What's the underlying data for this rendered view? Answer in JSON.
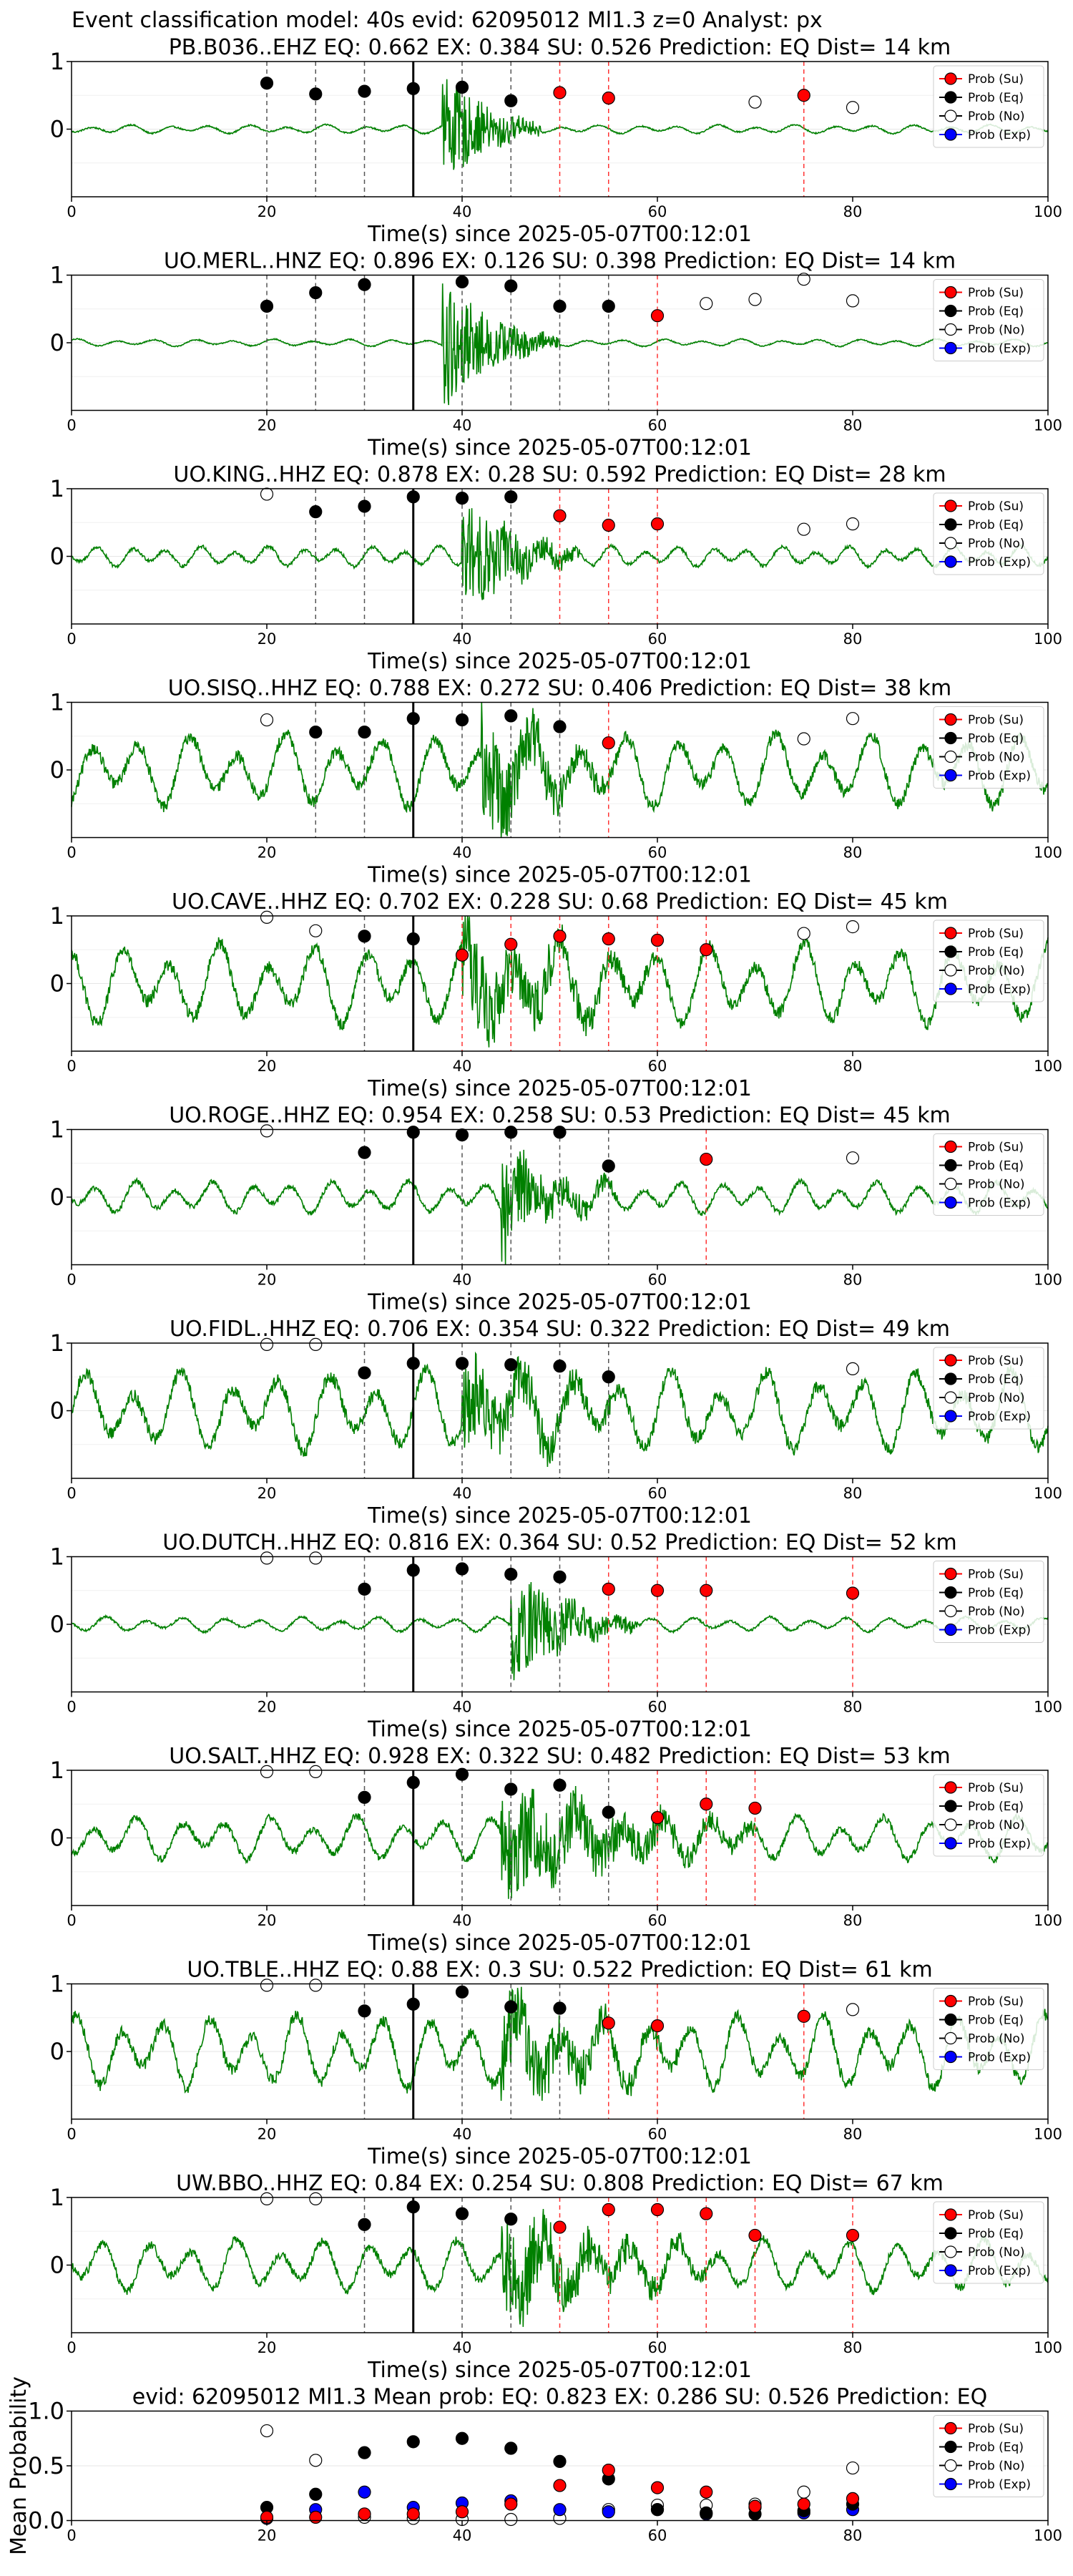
{
  "figure_title": "Event classification model: 40s evid: 62095012 Ml1.3 z=0 Analyst: px",
  "legend": [
    "Prob (Su)",
    "Prob (Eq)",
    "Prob (No)",
    "Prob (Exp)"
  ],
  "colors": {
    "su": "#ff0000",
    "eq": "#000000",
    "no": "#ffffff",
    "exp": "#0000ff",
    "trace": "#008000",
    "pick": "#000000",
    "eq_line": "#555555",
    "su_line": "#ff3333"
  },
  "chart_data": [
    {
      "type": "scatter",
      "title": "PB.B036..EHZ   EQ: 0.662   EX: 0.384   SU: 0.526   Prediction: EQ    Dist= 14 km",
      "xlabel": "Time(s) since 2025-05-07T00:12:01",
      "xlim": [
        0,
        100
      ],
      "ylim": [
        -1,
        1
      ],
      "xticks": [
        0,
        20,
        40,
        60,
        80,
        100
      ],
      "yticks": [
        0,
        1
      ],
      "pick": 35,
      "signal": [
        38,
        48
      ],
      "trace_amplitude": 0.06,
      "burst_amplitude": 0.9,
      "period": 4,
      "eq": {
        "x": [
          20,
          25,
          30,
          35,
          40,
          45
        ],
        "y": [
          0.68,
          0.52,
          0.56,
          0.6,
          0.62,
          0.42
        ]
      },
      "su": {
        "x": [
          50,
          55,
          75
        ],
        "y": [
          0.54,
          0.46,
          0.5
        ]
      },
      "no": {
        "x": [
          70,
          80
        ],
        "y": [
          0.4,
          0.32
        ]
      }
    },
    {
      "type": "scatter",
      "title": "UO.MERL..HNZ   EQ: 0.896   EX: 0.126   SU: 0.398   Prediction: EQ    Dist= 14 km",
      "xlabel": "Time(s) since 2025-05-07T00:12:01",
      "xlim": [
        0,
        100
      ],
      "ylim": [
        -1,
        1
      ],
      "xticks": [
        0,
        20,
        40,
        60,
        80,
        100
      ],
      "yticks": [
        0,
        1
      ],
      "pick": 35,
      "signal": [
        38,
        50
      ],
      "trace_amplitude": 0.05,
      "burst_amplitude": 1.0,
      "period": 4,
      "eq": {
        "x": [
          20,
          25,
          30,
          40,
          45,
          50,
          55
        ],
        "y": [
          0.54,
          0.74,
          0.86,
          0.9,
          0.84,
          0.54,
          0.54
        ]
      },
      "su": {
        "x": [
          60
        ],
        "y": [
          0.4
        ]
      },
      "no": {
        "x": [
          65,
          70,
          75,
          80
        ],
        "y": [
          0.58,
          0.64,
          0.94,
          0.62
        ]
      }
    },
    {
      "type": "scatter",
      "title": "UO.KING..HHZ   EQ: 0.878   EX: 0.28   SU: 0.592   Prediction: EQ    Dist= 28 km",
      "xlabel": "Time(s) since 2025-05-07T00:12:01",
      "xlim": [
        0,
        100
      ],
      "ylim": [
        -1,
        1
      ],
      "xticks": [
        0,
        20,
        40,
        60,
        80,
        100
      ],
      "yticks": [
        0,
        1
      ],
      "pick": 35,
      "signal": [
        40,
        52
      ],
      "trace_amplitude": 0.14,
      "burst_amplitude": 0.95,
      "period": 3.5,
      "eq": {
        "x": [
          25,
          30,
          35,
          40,
          45
        ],
        "y": [
          0.66,
          0.74,
          0.88,
          0.86,
          0.88
        ]
      },
      "su": {
        "x": [
          50,
          55,
          60
        ],
        "y": [
          0.6,
          0.46,
          0.48
        ]
      },
      "no": {
        "x": [
          20,
          75,
          80
        ],
        "y": [
          0.92,
          0.4,
          0.48
        ]
      }
    },
    {
      "type": "scatter",
      "title": "UO.SISQ..HHZ   EQ: 0.788   EX: 0.272   SU: 0.406   Prediction: EQ    Dist= 38 km",
      "xlabel": "Time(s) since 2025-05-07T00:12:01",
      "xlim": [
        0,
        100
      ],
      "ylim": [
        -1,
        1
      ],
      "xticks": [
        0,
        20,
        40,
        60,
        80,
        100
      ],
      "yticks": [
        0,
        1
      ],
      "pick": 35,
      "signal": [
        42,
        56
      ],
      "trace_amplitude": 0.5,
      "burst_amplitude": 0.9,
      "period": 5,
      "eq": {
        "x": [
          25,
          30,
          35,
          40,
          45,
          50
        ],
        "y": [
          0.56,
          0.56,
          0.76,
          0.74,
          0.8,
          0.64
        ]
      },
      "su": {
        "x": [
          55
        ],
        "y": [
          0.4
        ]
      },
      "no": {
        "x": [
          20,
          75,
          80
        ],
        "y": [
          0.74,
          0.46,
          0.76
        ]
      }
    },
    {
      "type": "scatter",
      "title": "UO.CAVE..HHZ   EQ: 0.702   EX: 0.228   SU: 0.68   Prediction: EQ    Dist= 45 km",
      "xlabel": "Time(s) since 2025-05-07T00:12:01",
      "xlim": [
        0,
        100
      ],
      "ylim": [
        -1,
        1
      ],
      "xticks": [
        0,
        20,
        40,
        60,
        80,
        100
      ],
      "yticks": [
        0,
        1
      ],
      "pick": 35,
      "signal": [
        40,
        60
      ],
      "trace_amplitude": 0.55,
      "burst_amplitude": 0.8,
      "period": 5,
      "eq": {
        "x": [
          30,
          35
        ],
        "y": [
          0.7,
          0.66
        ]
      },
      "su": {
        "x": [
          40,
          45,
          50,
          55,
          60,
          65
        ],
        "y": [
          0.42,
          0.58,
          0.7,
          0.66,
          0.64,
          0.5
        ]
      },
      "no": {
        "x": [
          20,
          25,
          75,
          80
        ],
        "y": [
          0.98,
          0.78,
          0.74,
          0.84
        ]
      }
    },
    {
      "type": "scatter",
      "title": "UO.ROGE..HHZ   EQ: 0.954   EX: 0.258   SU: 0.53   Prediction: EQ    Dist= 45 km",
      "xlabel": "Time(s) since 2025-05-07T00:12:01",
      "xlim": [
        0,
        100
      ],
      "ylim": [
        -1,
        1
      ],
      "xticks": [
        0,
        20,
        40,
        60,
        80,
        100
      ],
      "yticks": [
        0,
        1
      ],
      "pick": 35,
      "signal": [
        44,
        56
      ],
      "trace_amplitude": 0.22,
      "burst_amplitude": 0.85,
      "period": 4,
      "eq": {
        "x": [
          30,
          35,
          40,
          45,
          50,
          55
        ],
        "y": [
          0.66,
          0.96,
          0.92,
          0.96,
          0.96,
          0.46
        ]
      },
      "su": {
        "x": [
          65
        ],
        "y": [
          0.56
        ]
      },
      "no": {
        "x": [
          20,
          80
        ],
        "y": [
          0.98,
          0.58
        ]
      }
    },
    {
      "type": "scatter",
      "title": "UO.FIDL..HHZ   EQ: 0.706   EX: 0.354   SU: 0.322   Prediction: EQ    Dist= 49 km",
      "xlabel": "Time(s) since 2025-05-07T00:12:01",
      "xlim": [
        0,
        100
      ],
      "ylim": [
        -1,
        1
      ],
      "xticks": [
        0,
        20,
        40,
        60,
        80,
        100
      ],
      "yticks": [
        0,
        1
      ],
      "pick": 35,
      "signal": [
        40,
        58
      ],
      "trace_amplitude": 0.55,
      "burst_amplitude": 0.75,
      "period": 5,
      "eq": {
        "x": [
          30,
          35,
          40,
          45,
          50,
          55
        ],
        "y": [
          0.56,
          0.7,
          0.7,
          0.68,
          0.66,
          0.5
        ]
      },
      "su": {
        "x": [],
        "y": []
      },
      "no": {
        "x": [
          20,
          25,
          80
        ],
        "y": [
          0.98,
          0.98,
          0.62
        ]
      }
    },
    {
      "type": "scatter",
      "title": "UO.DUTCH..HHZ   EQ: 0.816   EX: 0.364   SU: 0.52   Prediction: EQ    Dist= 52 km",
      "xlabel": "Time(s) since 2025-05-07T00:12:01",
      "xlim": [
        0,
        100
      ],
      "ylim": [
        -1,
        1
      ],
      "xticks": [
        0,
        20,
        40,
        60,
        80,
        100
      ],
      "yticks": [
        0,
        1
      ],
      "pick": 35,
      "signal": [
        45,
        58
      ],
      "trace_amplitude": 0.1,
      "burst_amplitude": 0.9,
      "period": 4,
      "eq": {
        "x": [
          30,
          35,
          40,
          45,
          50
        ],
        "y": [
          0.52,
          0.8,
          0.82,
          0.74,
          0.7
        ]
      },
      "su": {
        "x": [
          55,
          60,
          65,
          80
        ],
        "y": [
          0.52,
          0.5,
          0.5,
          0.46
        ]
      },
      "no": {
        "x": [
          20,
          25
        ],
        "y": [
          0.98,
          0.98
        ]
      }
    },
    {
      "type": "scatter",
      "title": "UO.SALT..HHZ   EQ: 0.928   EX: 0.322   SU: 0.482   Prediction: EQ    Dist= 53 km",
      "xlabel": "Time(s) since 2025-05-07T00:12:01",
      "xlim": [
        0,
        100
      ],
      "ylim": [
        -1,
        1
      ],
      "xticks": [
        0,
        20,
        40,
        60,
        80,
        100
      ],
      "yticks": [
        0,
        1
      ],
      "pick": 35,
      "signal": [
        44,
        70
      ],
      "trace_amplitude": 0.3,
      "burst_amplitude": 0.85,
      "period": 4.5,
      "eq": {
        "x": [
          30,
          35,
          40,
          45,
          50,
          55
        ],
        "y": [
          0.6,
          0.82,
          0.94,
          0.72,
          0.78,
          0.38
        ]
      },
      "su": {
        "x": [
          60,
          65,
          70
        ],
        "y": [
          0.3,
          0.5,
          0.44
        ]
      },
      "no": {
        "x": [
          20,
          25
        ],
        "y": [
          0.98,
          0.98
        ]
      }
    },
    {
      "type": "scatter",
      "title": "UO.TBLE..HHZ   EQ: 0.88   EX: 0.3   SU: 0.522   Prediction: EQ    Dist= 61 km",
      "xlabel": "Time(s) since 2025-05-07T00:12:01",
      "xlim": [
        0,
        100
      ],
      "ylim": [
        -1,
        1
      ],
      "xticks": [
        0,
        20,
        40,
        60,
        80,
        100
      ],
      "yticks": [
        0,
        1
      ],
      "pick": 35,
      "signal": [
        44,
        62
      ],
      "trace_amplitude": 0.5,
      "burst_amplitude": 0.75,
      "period": 4.5,
      "eq": {
        "x": [
          30,
          35,
          40,
          45,
          50
        ],
        "y": [
          0.6,
          0.7,
          0.88,
          0.66,
          0.64
        ]
      },
      "su": {
        "x": [
          55,
          60,
          75
        ],
        "y": [
          0.42,
          0.38,
          0.52
        ]
      },
      "no": {
        "x": [
          20,
          25,
          80
        ],
        "y": [
          0.98,
          0.98,
          0.62
        ]
      }
    },
    {
      "type": "scatter",
      "title": "UW.BBO..HHZ   EQ: 0.84   EX: 0.254   SU: 0.808   Prediction: EQ    Dist= 67 km",
      "xlabel": "Time(s) since 2025-05-07T00:12:01",
      "xlim": [
        0,
        100
      ],
      "ylim": [
        -1,
        1
      ],
      "xticks": [
        0,
        20,
        40,
        60,
        80,
        100
      ],
      "yticks": [
        0,
        1
      ],
      "pick": 35,
      "signal": [
        44,
        66
      ],
      "trace_amplitude": 0.35,
      "burst_amplitude": 0.8,
      "period": 4.5,
      "eq": {
        "x": [
          30,
          35,
          40,
          45
        ],
        "y": [
          0.6,
          0.86,
          0.76,
          0.68
        ]
      },
      "su": {
        "x": [
          50,
          55,
          60,
          65,
          70,
          80
        ],
        "y": [
          0.56,
          0.82,
          0.82,
          0.76,
          0.44,
          0.44
        ]
      },
      "no": {
        "x": [
          20,
          25
        ],
        "y": [
          0.98,
          0.98
        ]
      }
    },
    {
      "type": "scatter",
      "title": "evid: 62095012  Ml1.3    Mean prob:   EQ: 0.823  EX: 0.286  SU: 0.526   Prediction: EQ",
      "ylabel": "Mean Probability",
      "xlim": [
        0,
        100
      ],
      "ylim": [
        0,
        1
      ],
      "xticks": [
        0,
        20,
        40,
        60,
        80,
        100
      ],
      "yticks": [
        0.0,
        0.5,
        1.0
      ],
      "ytick_labels": [
        "0.0",
        "0.5",
        "1.0"
      ],
      "no": {
        "x": [
          20,
          25,
          30,
          35,
          40,
          45,
          50,
          55,
          60,
          65,
          70,
          75,
          80
        ],
        "y": [
          0.82,
          0.55,
          0.03,
          0.02,
          0.01,
          0.01,
          0.02,
          0.1,
          0.14,
          0.14,
          0.15,
          0.26,
          0.48
        ]
      },
      "exp": {
        "x": [
          20,
          25,
          30,
          35,
          40,
          45,
          50,
          55,
          60,
          65,
          70,
          75,
          80
        ],
        "y": [
          0.02,
          0.1,
          0.26,
          0.12,
          0.16,
          0.18,
          0.1,
          0.08,
          0.1,
          0.06,
          0.12,
          0.07,
          0.1
        ]
      },
      "eq": {
        "x": [
          20,
          25,
          30,
          35,
          40,
          45,
          50,
          55,
          60,
          65,
          70,
          75,
          80
        ],
        "y": [
          0.12,
          0.24,
          0.62,
          0.72,
          0.75,
          0.66,
          0.54,
          0.38,
          0.1,
          0.07,
          0.06,
          0.09,
          0.15
        ]
      },
      "su": {
        "x": [
          20,
          25,
          30,
          35,
          40,
          45,
          50,
          55,
          60,
          65,
          70,
          75,
          80
        ],
        "y": [
          0.03,
          0.03,
          0.06,
          0.06,
          0.08,
          0.15,
          0.32,
          0.46,
          0.3,
          0.26,
          0.13,
          0.15,
          0.2
        ]
      }
    }
  ]
}
